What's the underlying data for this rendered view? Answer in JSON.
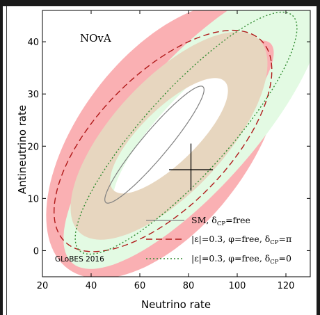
{
  "chart_data": {
    "type": "scatter",
    "title": "NOvA",
    "xlabel": "Neutrino rate",
    "ylabel": "Antineutrino rate",
    "xlim": [
      20,
      130
    ],
    "ylim": [
      -5,
      46
    ],
    "x_ticks": [
      20,
      40,
      60,
      80,
      100,
      120
    ],
    "y_ticks": [
      0,
      10,
      20,
      30,
      40
    ],
    "watermark": "GLoBES 2016",
    "grid": false,
    "legend_position": "bottom-right",
    "sm_point": {
      "x": 81,
      "y": 15.5,
      "x_err": [
        72,
        90
      ],
      "y_err": [
        11.5,
        20.5
      ]
    },
    "series": [
      {
        "name": "SM, δCP=free",
        "legend": {
          "main": "SM, δ",
          "sub": "CP",
          "rest": "=free"
        },
        "style": "solid",
        "color": "#808080",
        "ellipse": {
          "cx": 66,
          "cy": 20.3,
          "rx": 23,
          "ry": 3.4,
          "angle_deg": 28
        }
      },
      {
        "name": "|ε|=0.3, φ=free, δCP=π",
        "legend": {
          "main": "|ε|=0.3, φ=free, δ",
          "sub": "CP",
          "rest": "=π"
        },
        "style": "dashed",
        "color": "#b01818",
        "ellipse": {
          "cx": 69.5,
          "cy": 21,
          "rx": 47,
          "ry": 15.5,
          "angle_deg": 19
        }
      },
      {
        "name": "|ε|=0.3, φ=free, δCP=0",
        "legend": {
          "main": "|ε|=0.3, φ=free, δ",
          "sub": "CP",
          "rest": "=0"
        },
        "style": "dotted",
        "color": "#2f8a2f",
        "ellipse": {
          "cx": 79,
          "cy": 22.5,
          "rx": 50,
          "ry": 10.5,
          "angle_deg": 25
        }
      }
    ],
    "bands": [
      {
        "name": "red band",
        "color": "#fab0b3",
        "cx": 70,
        "cy": 21,
        "rx": 51,
        "ry": 21,
        "angle_deg": 20,
        "inner_scale": 0.68
      },
      {
        "name": "green band",
        "color": "#e3fae3",
        "cx": 82,
        "cy": 24,
        "rx": 58,
        "ry": 15.5,
        "angle_deg": 24,
        "inner_scale": 0.62
      },
      {
        "name": "overlap band",
        "color": "#e7d6bf",
        "cx": 72,
        "cy": 22,
        "rx": 43,
        "ry": 13.5,
        "angle_deg": 21,
        "inner_scale": 0.6
      }
    ]
  }
}
